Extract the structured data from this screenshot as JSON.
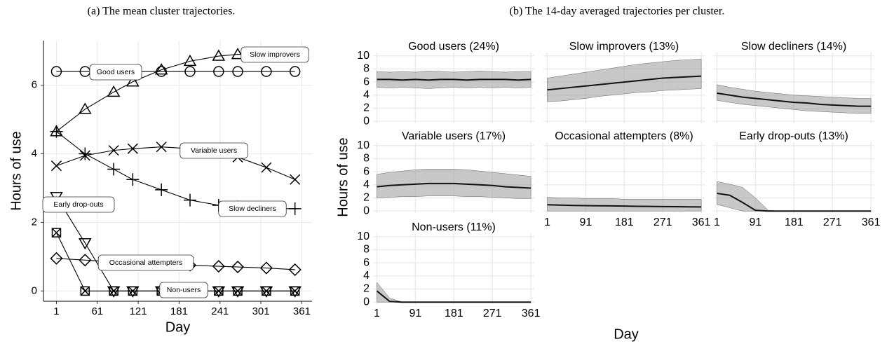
{
  "chart_data": [
    {
      "type": "line",
      "caption": "(a) The mean cluster trajectories.",
      "x_label": "Day",
      "y_label": "Hours of use",
      "x": [
        1,
        43,
        85,
        113,
        155,
        197,
        239,
        267,
        309,
        351
      ],
      "xlim": [
        -18,
        376
      ],
      "xticks": [
        1,
        61,
        121,
        181,
        241,
        301,
        361
      ],
      "ylim": [
        -0.3,
        7.3
      ],
      "yticks": [
        0,
        2,
        4,
        6
      ],
      "grid": true,
      "series": [
        {
          "name": "Good users",
          "marker": "circle",
          "color": "#000000",
          "values": [
            6.4,
            6.4,
            6.4,
            6.4,
            6.4,
            6.4,
            6.4,
            6.4,
            6.4,
            6.4
          ]
        },
        {
          "name": "Slow improvers",
          "marker": "triangle",
          "color": "#000000",
          "values": [
            4.65,
            5.3,
            5.8,
            6.1,
            6.45,
            6.7,
            6.85,
            6.9,
            6.9,
            6.85
          ]
        },
        {
          "name": "Variable users",
          "marker": "x",
          "color": "#000000",
          "values": [
            3.65,
            3.95,
            4.1,
            4.15,
            4.2,
            4.15,
            4.05,
            3.9,
            3.6,
            3.25
          ]
        },
        {
          "name": "Slow decliners",
          "marker": "plus",
          "color": "#000000",
          "values": [
            4.65,
            4.0,
            3.55,
            3.25,
            2.95,
            2.65,
            2.5,
            2.45,
            2.4,
            2.4
          ]
        },
        {
          "name": "Early drop-outs",
          "marker": "triangle-down",
          "color": "#000000",
          "values": [
            2.75,
            1.4,
            0,
            0,
            0,
            0,
            0,
            0,
            0,
            0
          ]
        },
        {
          "name": "Occasional attempters",
          "marker": "diamond",
          "color": "#000000",
          "values": [
            0.95,
            0.9,
            0.85,
            0.82,
            0.8,
            0.75,
            0.72,
            0.7,
            0.67,
            0.62
          ]
        },
        {
          "name": "Non-users",
          "marker": "square-x",
          "color": "#000000",
          "values": [
            1.7,
            0,
            0,
            0,
            0,
            0,
            0,
            0,
            0,
            0
          ]
        }
      ]
    },
    {
      "type": "band",
      "caption": "(b) The 14-day averaged trajectories per cluster.",
      "x_label": "Day",
      "y_label": "Hours of use",
      "x": [
        1,
        31,
        61,
        91,
        121,
        151,
        181,
        211,
        241,
        271,
        301,
        331,
        361
      ],
      "xlim": [
        -8,
        369
      ],
      "xticks": [
        1,
        91,
        181,
        271,
        361
      ],
      "ylim": [
        -0.3,
        10.5
      ],
      "yticks": [
        0,
        2,
        4,
        6,
        8,
        10
      ],
      "grid": true,
      "facets": [
        {
          "title": "Good users (24%)",
          "lower": [
            5.2,
            5.1,
            5.2,
            5.1,
            5.0,
            5.1,
            5.2,
            5.1,
            5.2,
            5.1,
            5.2,
            5.1,
            5.2
          ],
          "center": [
            6.4,
            6.4,
            6.3,
            6.4,
            6.3,
            6.4,
            6.4,
            6.3,
            6.4,
            6.4,
            6.4,
            6.3,
            6.4
          ],
          "upper": [
            7.6,
            7.5,
            7.6,
            7.5,
            7.7,
            7.6,
            7.5,
            7.6,
            7.7,
            7.6,
            7.5,
            7.6,
            7.6
          ]
        },
        {
          "title": "Slow improvers (13%)",
          "lower": [
            3.0,
            3.1,
            3.3,
            3.5,
            3.8,
            4.0,
            4.2,
            4.4,
            4.5,
            4.7,
            4.8,
            4.9,
            5.0
          ],
          "center": [
            4.8,
            5.0,
            5.2,
            5.4,
            5.6,
            5.8,
            6.0,
            6.2,
            6.4,
            6.6,
            6.7,
            6.8,
            6.9
          ],
          "upper": [
            6.6,
            6.9,
            7.2,
            7.5,
            7.8,
            8.1,
            8.4,
            8.7,
            8.9,
            9.1,
            9.3,
            9.4,
            9.5
          ]
        },
        {
          "title": "Slow decliners (14%)",
          "lower": [
            3.2,
            2.9,
            2.6,
            2.4,
            2.2,
            2.0,
            1.8,
            1.6,
            1.5,
            1.4,
            1.3,
            1.2,
            1.2
          ],
          "center": [
            4.3,
            4.0,
            3.7,
            3.5,
            3.3,
            3.1,
            2.9,
            2.8,
            2.6,
            2.5,
            2.4,
            2.3,
            2.3
          ],
          "upper": [
            5.6,
            5.2,
            4.9,
            4.6,
            4.4,
            4.2,
            4.0,
            3.9,
            3.8,
            3.7,
            3.6,
            3.5,
            3.5
          ]
        },
        {
          "title": "Variable users (17%)",
          "lower": [
            2.0,
            2.1,
            2.2,
            2.2,
            2.3,
            2.3,
            2.3,
            2.2,
            2.2,
            2.1,
            2.0,
            1.9,
            1.9
          ],
          "center": [
            3.7,
            3.9,
            4.0,
            4.1,
            4.2,
            4.2,
            4.2,
            4.1,
            4.0,
            3.9,
            3.7,
            3.6,
            3.5
          ],
          "upper": [
            5.6,
            5.9,
            6.1,
            6.3,
            6.4,
            6.4,
            6.4,
            6.3,
            6.1,
            5.9,
            5.7,
            5.5,
            5.3
          ]
        },
        {
          "title": "Occasional attempters (8%)",
          "lower": [
            0,
            0,
            0,
            0,
            0,
            0,
            0,
            0,
            0,
            0,
            0,
            0,
            0
          ],
          "center": [
            0.95,
            0.9,
            0.85,
            0.82,
            0.8,
            0.78,
            0.75,
            0.72,
            0.7,
            0.68,
            0.66,
            0.64,
            0.62
          ],
          "upper": [
            2.1,
            2.0,
            2.0,
            1.9,
            1.9,
            1.9,
            1.8,
            1.8,
            1.8,
            1.8,
            1.8,
            1.8,
            1.8
          ]
        },
        {
          "title": "Early drop-outs (13%)",
          "lower": [
            1.0,
            0.5,
            0,
            0,
            0,
            0,
            0,
            0,
            0,
            0,
            0,
            0,
            0
          ],
          "center": [
            2.7,
            2.4,
            1.3,
            0.1,
            0,
            0,
            0,
            0,
            0,
            0,
            0,
            0,
            0
          ],
          "upper": [
            4.5,
            4.1,
            3.6,
            2.0,
            0.1,
            0,
            0,
            0,
            0,
            0,
            0,
            0,
            0
          ]
        },
        {
          "title": "Non-users (11%)",
          "lower": [
            0,
            0,
            0,
            0,
            0,
            0,
            0,
            0,
            0,
            0,
            0,
            0,
            0
          ],
          "center": [
            1.7,
            0.1,
            0,
            0,
            0,
            0,
            0,
            0,
            0,
            0,
            0,
            0,
            0
          ],
          "upper": [
            3.0,
            0.6,
            0,
            0,
            0,
            0,
            0,
            0,
            0,
            0,
            0,
            0,
            0
          ]
        }
      ]
    }
  ]
}
